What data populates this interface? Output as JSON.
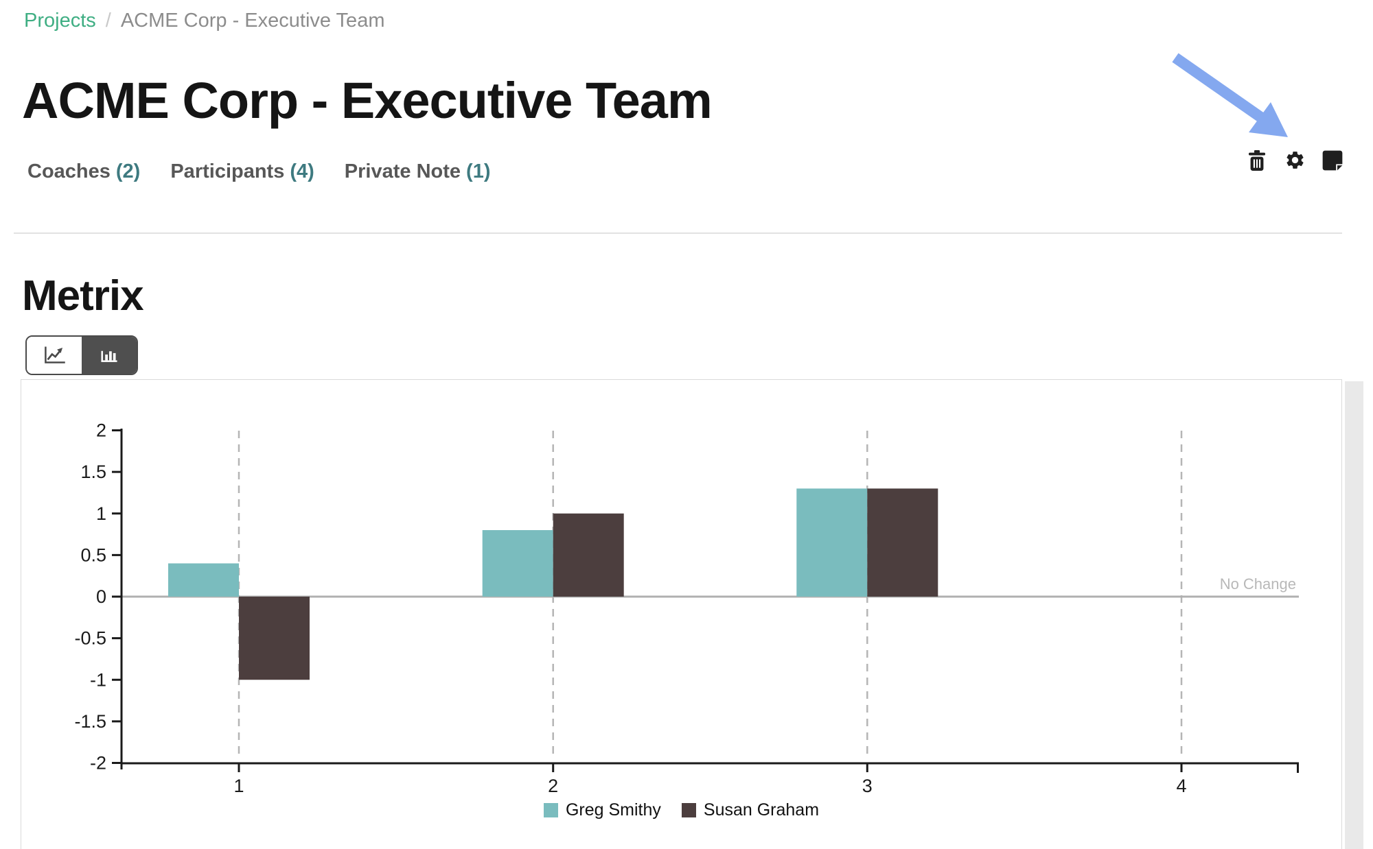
{
  "breadcrumb": {
    "projects": "Projects",
    "separator": "/",
    "current": "ACME Corp - Executive Team"
  },
  "header": {
    "title": "ACME Corp - Executive Team"
  },
  "tabs": [
    {
      "label": "Coaches",
      "count": "(2)"
    },
    {
      "label": "Participants",
      "count": "(4)"
    },
    {
      "label": "Private Note",
      "count": "(1)"
    }
  ],
  "toolbar": {
    "icons": [
      {
        "name": "trash-icon"
      },
      {
        "name": "gear-icon"
      },
      {
        "name": "note-icon"
      }
    ],
    "arrow_color": "#84a8ef"
  },
  "metrix": {
    "title": "Metrix",
    "toggle": [
      {
        "icon": "line-chart-icon",
        "active": false
      },
      {
        "icon": "bar-chart-icon",
        "active": true
      }
    ]
  },
  "chart_data": {
    "type": "bar",
    "categories": [
      "1",
      "2",
      "3",
      "4"
    ],
    "series": [
      {
        "name": "Greg Smithy",
        "color": "#7abcbe",
        "values": [
          0.4,
          0.8,
          1.3,
          null
        ]
      },
      {
        "name": "Susan Graham",
        "color": "#4c3e3e",
        "values": [
          -1.0,
          1.0,
          1.3,
          null
        ]
      }
    ],
    "ylim": [
      -2,
      2
    ],
    "yticks": [
      2,
      1.5,
      1,
      0.5,
      0,
      -0.5,
      -1,
      -1.5,
      -2
    ],
    "zero_line_label": "No Change",
    "grid": "vertical-dashed",
    "legend_position": "bottom",
    "colors": {
      "axis": "#1a1a1a",
      "grid": "#b5b5b5",
      "zero_line": "#b0b0b0",
      "annotation": "#b8b8b8"
    }
  }
}
